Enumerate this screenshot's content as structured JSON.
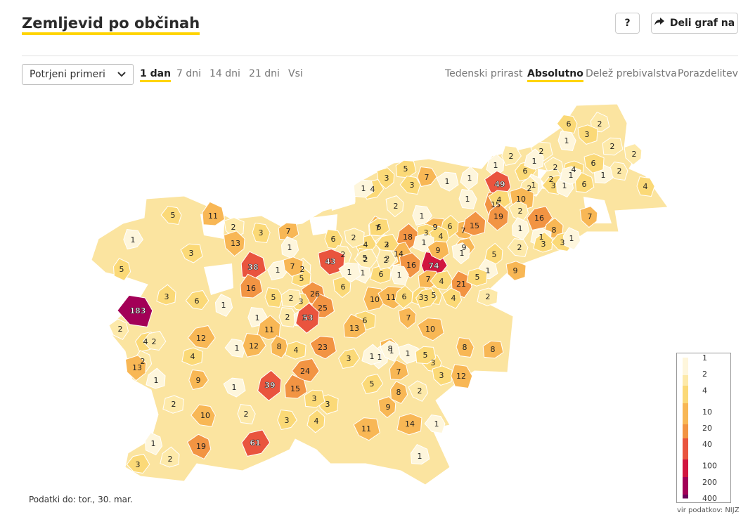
{
  "title": "Zemljevid po občinah",
  "help_label": "?",
  "share_label": "Deli graf na",
  "select": {
    "value": "Potrjeni primeri"
  },
  "time_tabs": [
    "1 dan",
    "7 dni",
    "14 dni",
    "21 dni",
    "Vsi"
  ],
  "mode_tabs": [
    "Tedenski prirast",
    "Absolutno",
    "Delež prebivalstva",
    "Porazdelitev"
  ],
  "active_time": "1 dan",
  "active_mode": "Absolutno",
  "footer": "Podatki do: tor., 30. mar.",
  "source": "vir podatkov: NIJZ",
  "colors": {
    "accent": "#ffd400",
    "c1": "#fef6dc",
    "c2": "#fde9a9",
    "c4": "#fbd977",
    "c10": "#f8b755",
    "c20": "#f29443",
    "c40": "#e9543e",
    "c100": "#d1153f",
    "c200": "#a30057",
    "c400": "#6d005c"
  },
  "legend": {
    "ticks": [
      "1",
      "2",
      "4",
      "10",
      "20",
      "40",
      "100",
      "200",
      "400"
    ]
  },
  "municipality_values": [
    6,
    2,
    3,
    1,
    2,
    2,
    2,
    2,
    1,
    6,
    2,
    1,
    2,
    1,
    4,
    2,
    1,
    6,
    4,
    5,
    3,
    7,
    1,
    1,
    4,
    49,
    2,
    3,
    1,
    1,
    3,
    6,
    10,
    1,
    1,
    7,
    15,
    4,
    19,
    16,
    2,
    8,
    7,
    1,
    1,
    5,
    11,
    2,
    3,
    7,
    13,
    1,
    9,
    6,
    4,
    2,
    3,
    3,
    1,
    3,
    2,
    7,
    2,
    6,
    6,
    2,
    1,
    3,
    18,
    14,
    4,
    15,
    3,
    1,
    1,
    2,
    38,
    43,
    5,
    2,
    16,
    74,
    9,
    5,
    9,
    1,
    3,
    2,
    5,
    6,
    5,
    1,
    9,
    1,
    7,
    1,
    2,
    1,
    2,
    1,
    26,
    5,
    4,
    21,
    5,
    3,
    16,
    7,
    5,
    2,
    6,
    10,
    11,
    6,
    3,
    4,
    3,
    6,
    1,
    2,
    183,
    25,
    6,
    2,
    1,
    7,
    1,
    10,
    53,
    4,
    2,
    11,
    12,
    8,
    4,
    1,
    13,
    1,
    8,
    8,
    8,
    12,
    23,
    1,
    3,
    1,
    1,
    2,
    2,
    4,
    3,
    7,
    3,
    12,
    5,
    13,
    9,
    1,
    39,
    5,
    2,
    1,
    24,
    8,
    2,
    10,
    15,
    3,
    2,
    3,
    9,
    3,
    11,
    4,
    61,
    19,
    2,
    3,
    1,
    14,
    1,
    1
  ]
}
